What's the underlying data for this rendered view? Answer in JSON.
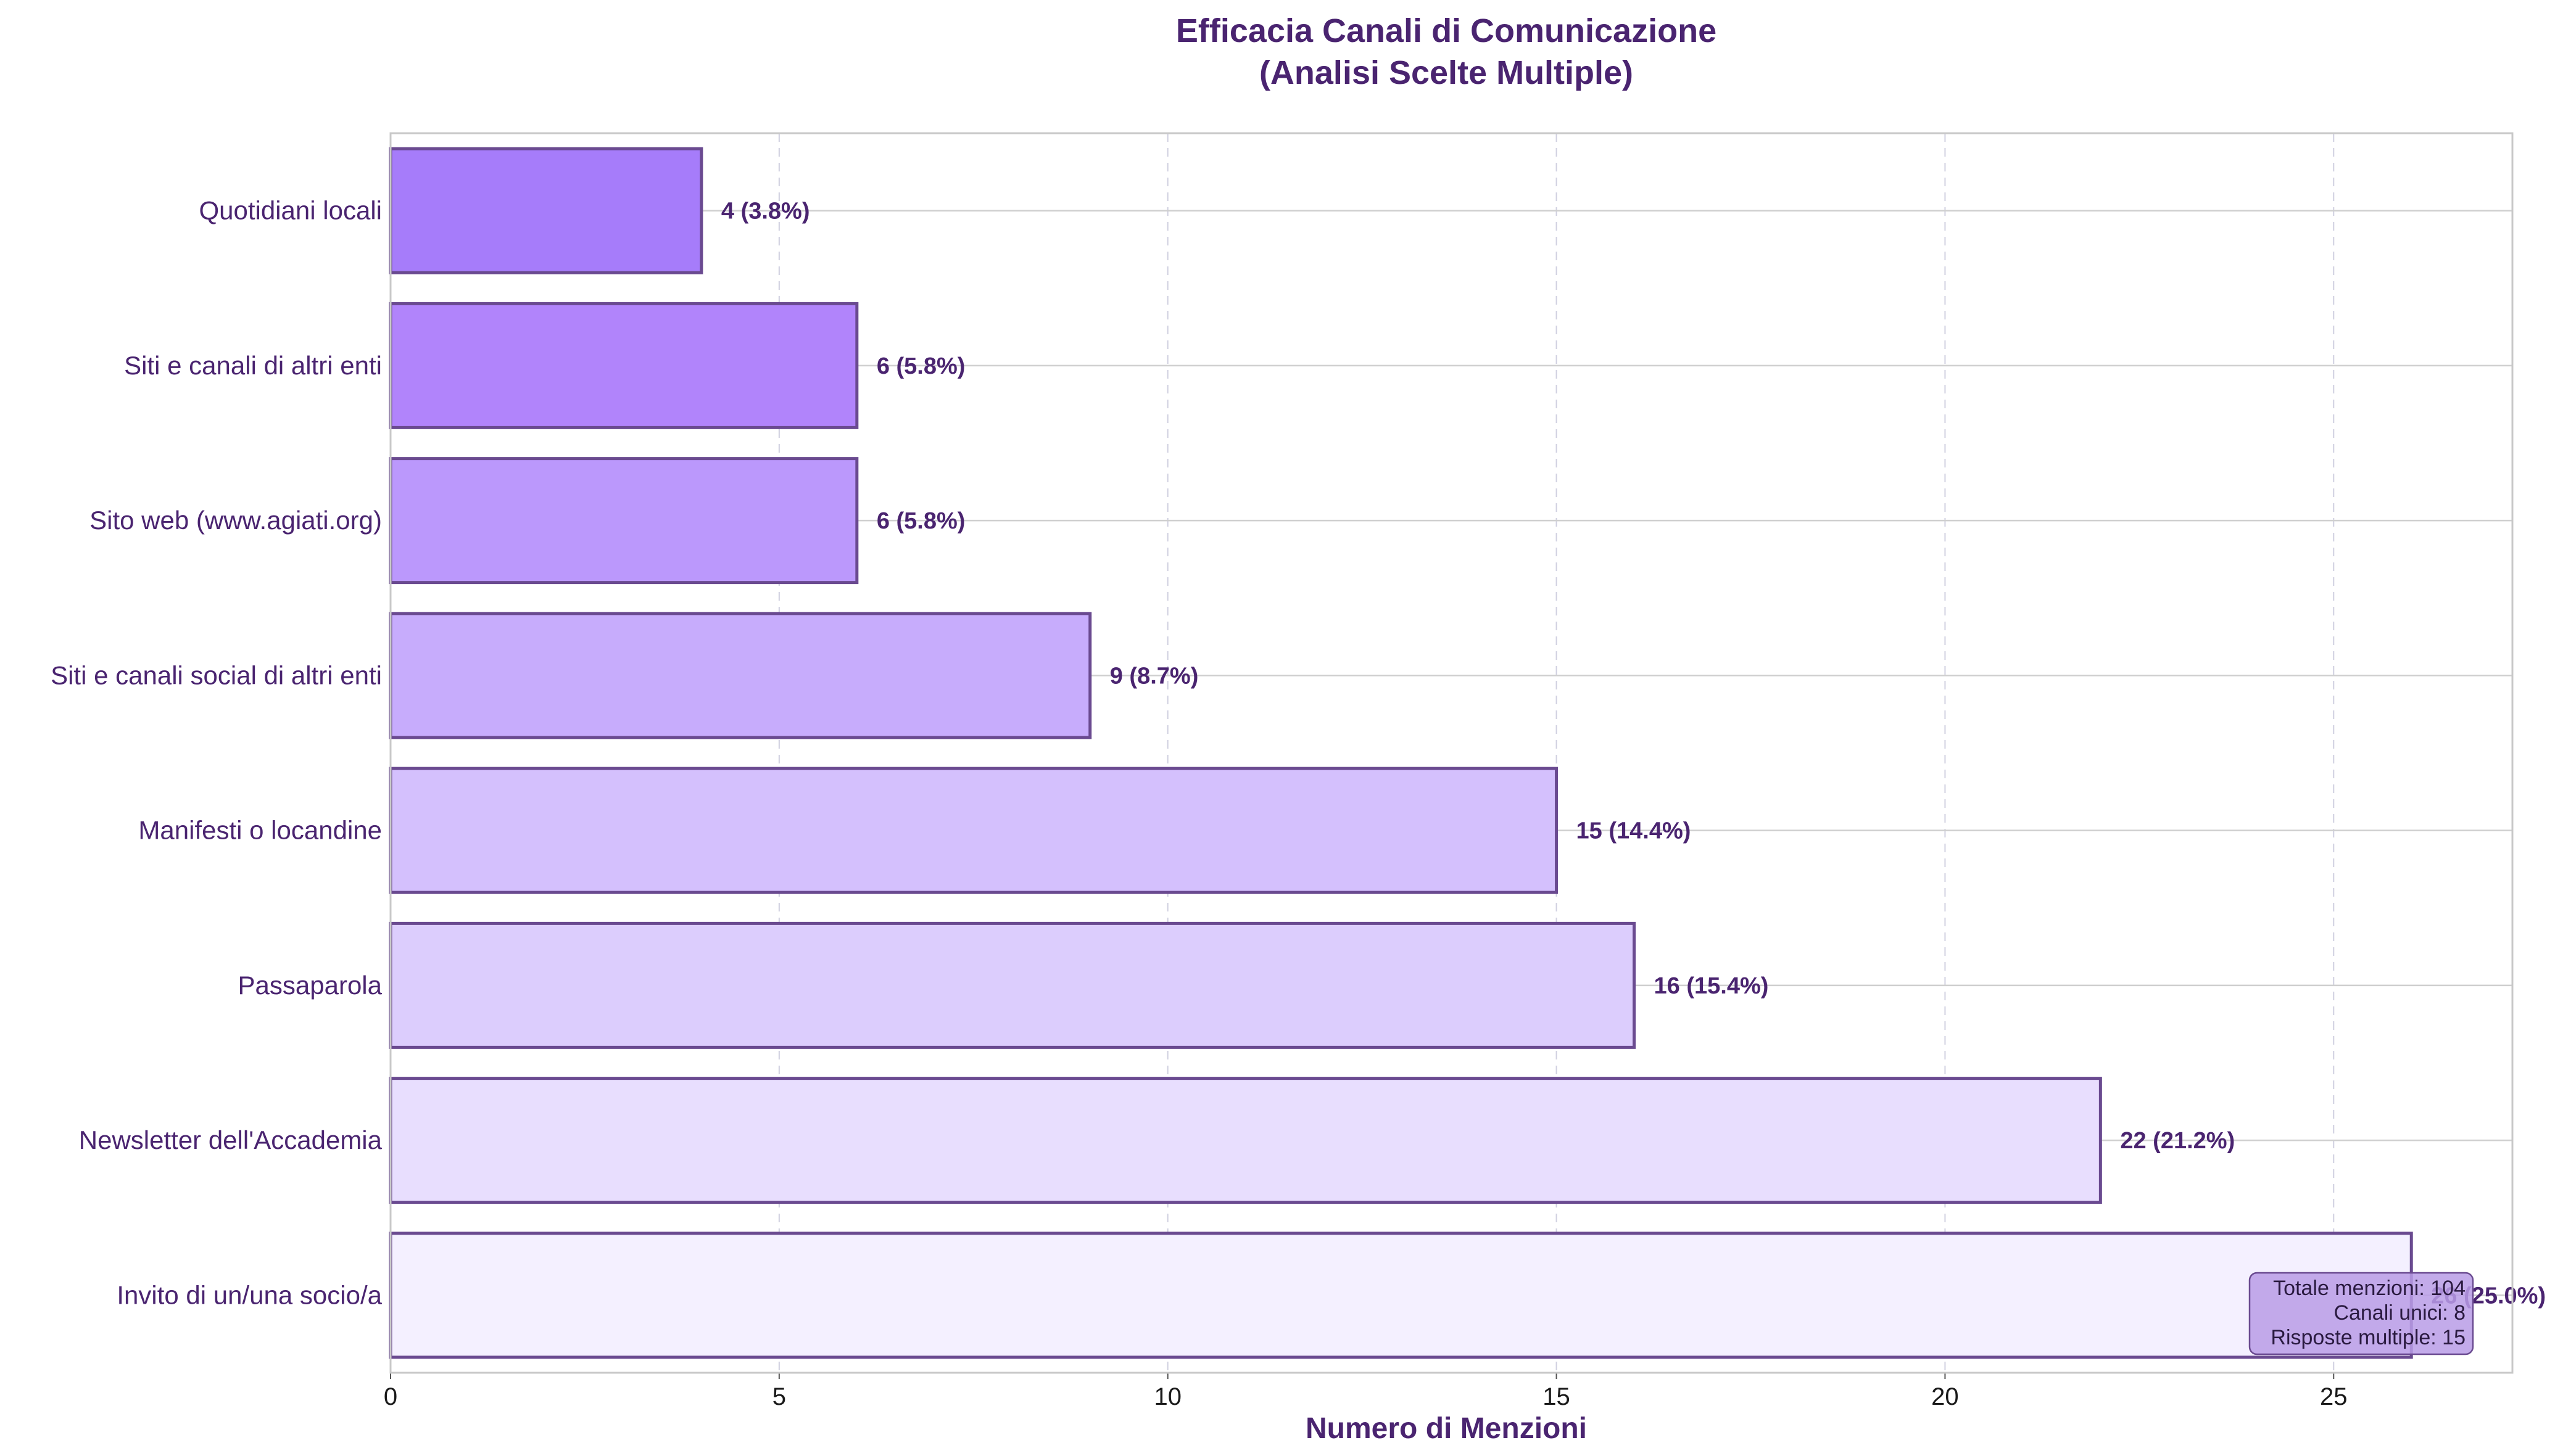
{
  "chart_data": {
    "type": "bar",
    "orientation": "horizontal",
    "title": "Efficacia Canali di Comunicazione",
    "subtitle": "(Analisi Scelte Multiple)",
    "xlabel": "Numero di Menzioni",
    "ylabel": "",
    "xlim": [
      0,
      27.3
    ],
    "xticks": [
      0,
      5,
      10,
      15,
      20,
      25
    ],
    "grid": true,
    "categories": [
      "Quotidiani locali",
      "Siti e canali di altri enti",
      "Sito web (www.agiati.org)",
      "Siti e canali social di altri enti",
      "Manifesti o locandine",
      "Passaparola",
      "Newsletter dell'Accademia",
      "Invito di un/una socio/a"
    ],
    "values": [
      4,
      6,
      6,
      9,
      15,
      16,
      22,
      26
    ],
    "value_labels": [
      "4 (3.8%)",
      "6 (5.8%)",
      "6 (5.8%)",
      "9 (8.7%)",
      "15 (14.4%)",
      "16 (15.4%)",
      "22 (21.2%)",
      "26 (25.0%)"
    ],
    "bar_colors": [
      "#a67cfa",
      "#b184fb",
      "#bb98fc",
      "#c7acfc",
      "#d4c0fd",
      "#dccdfd",
      "#e8defe",
      "#f4f0ff"
    ],
    "edge_color": "#6a4a90",
    "stats_box": {
      "lines": [
        "Totale menzioni: 104",
        "Canali unici: 8",
        "Risposte multiple: 15"
      ],
      "position": "bottom-right"
    }
  }
}
